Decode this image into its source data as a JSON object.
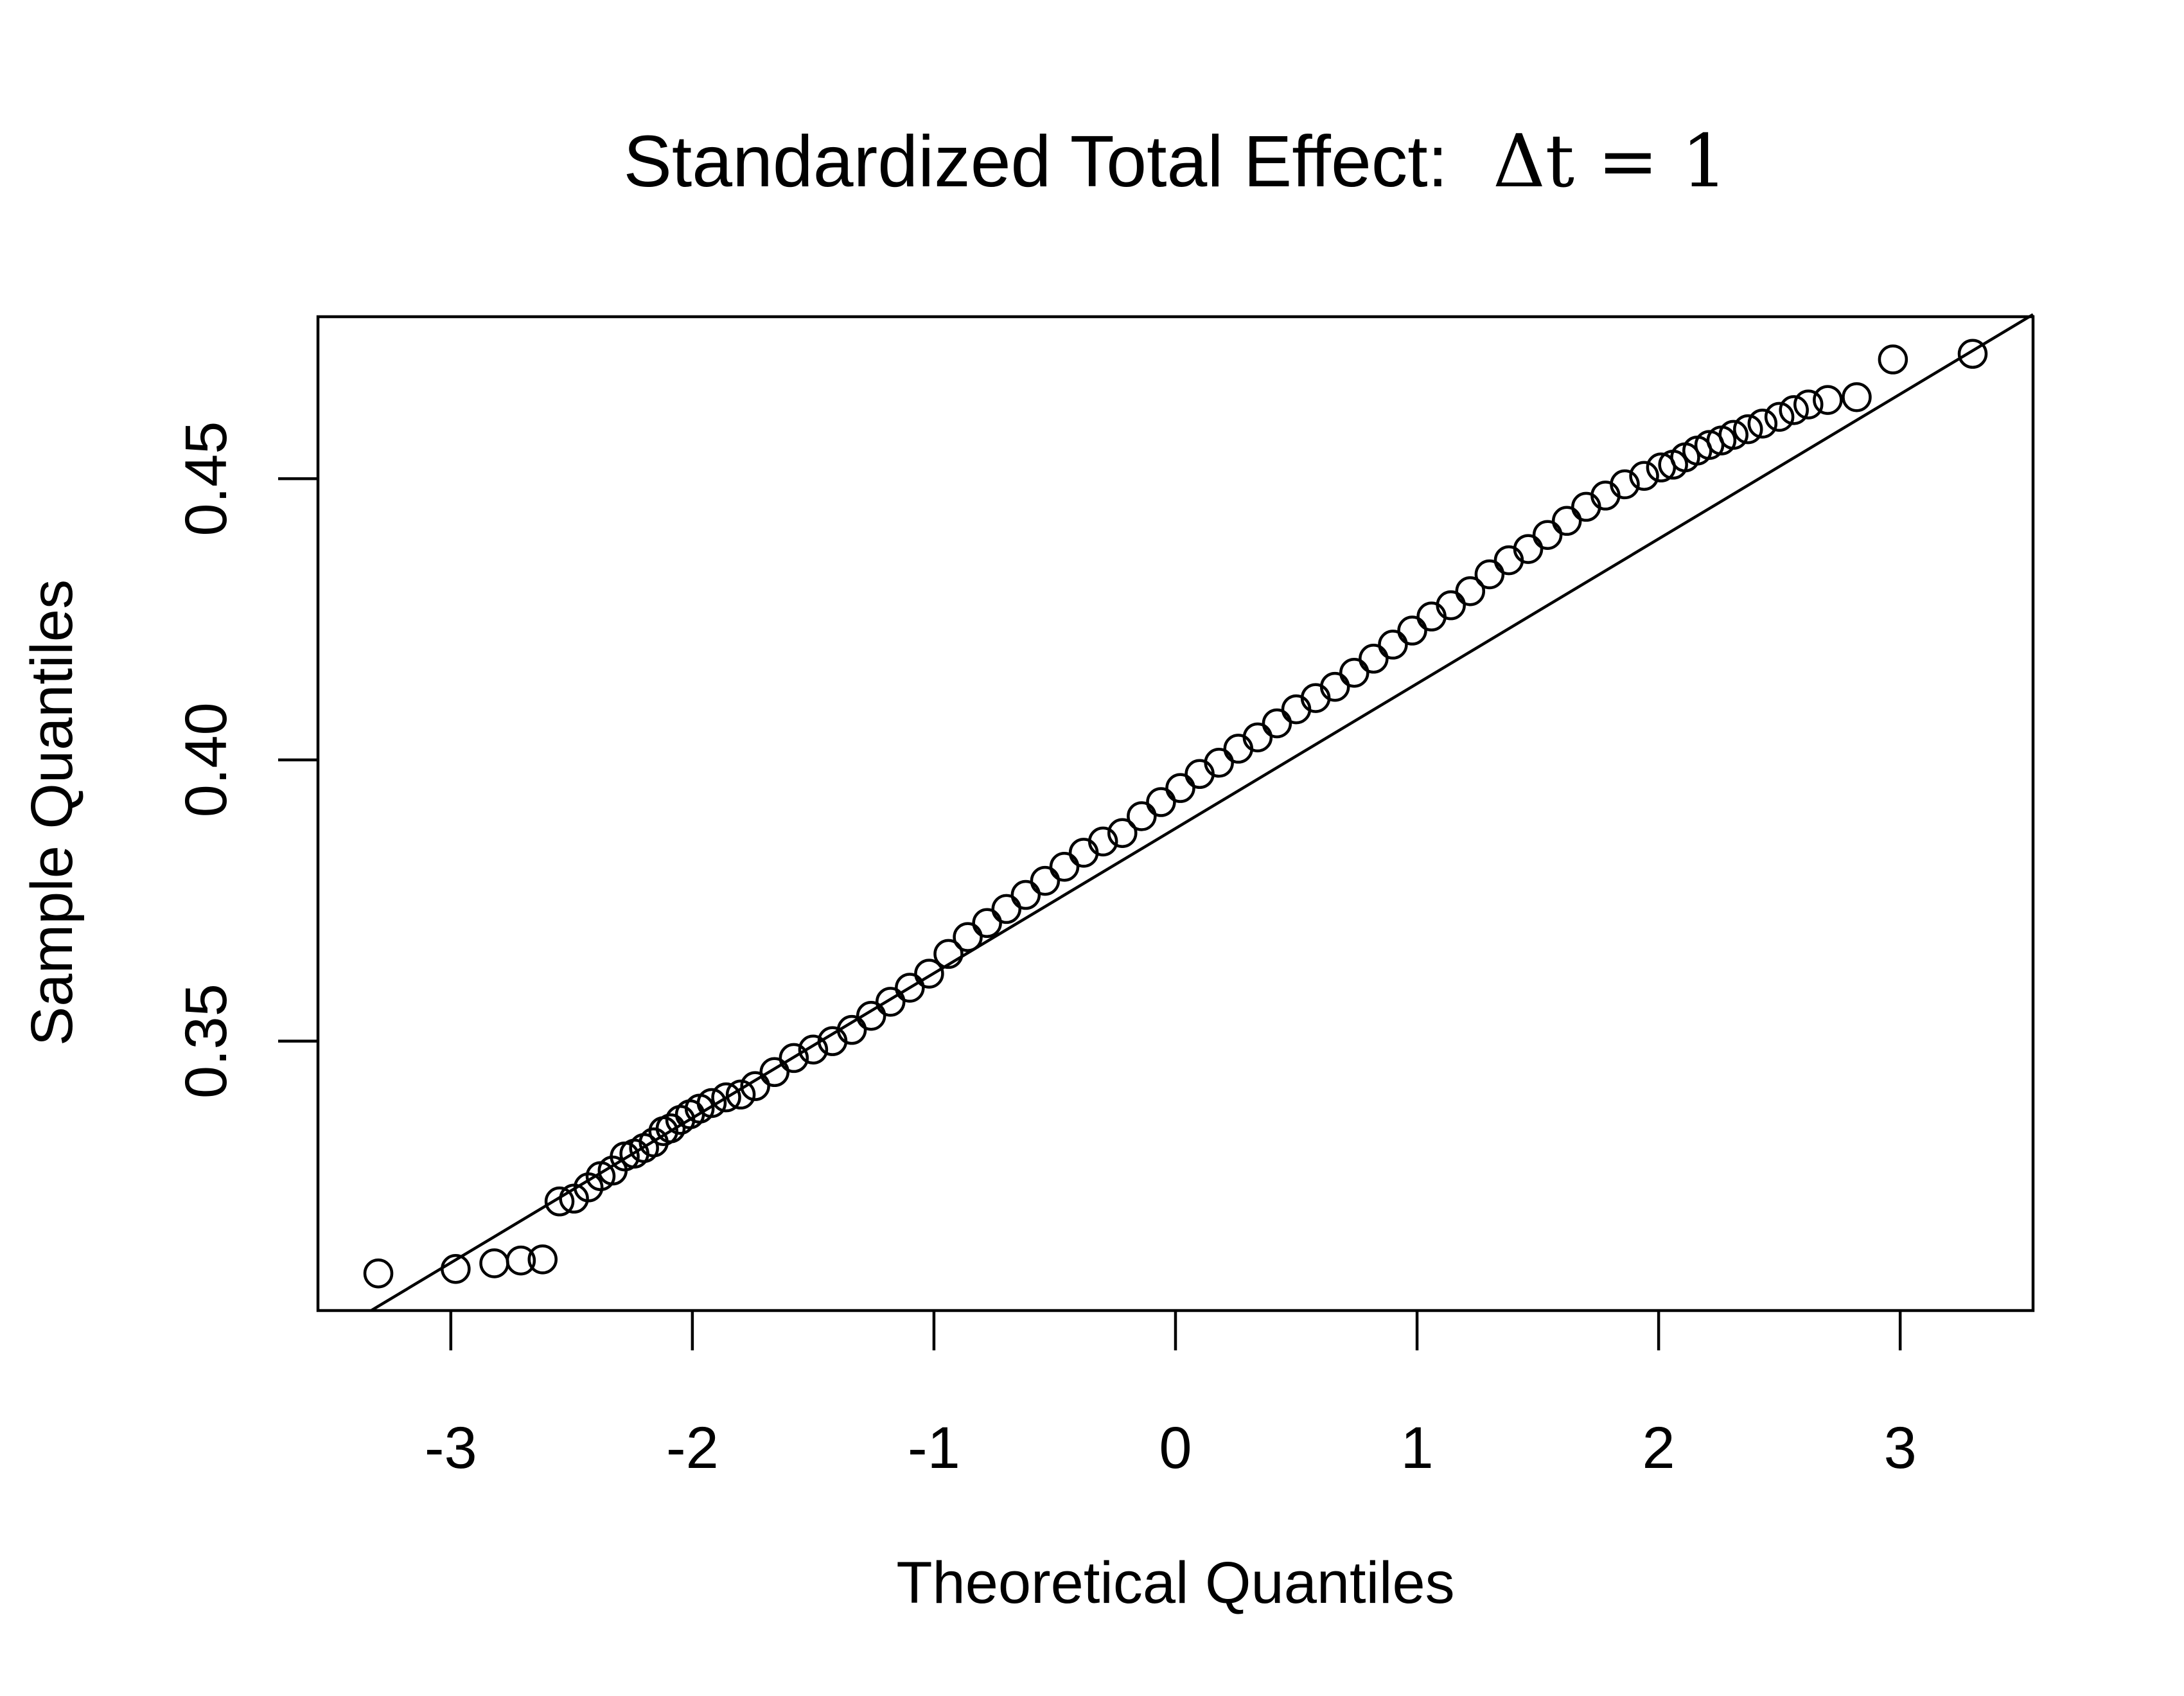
{
  "chart_data": {
    "type": "scatter",
    "title_main": "Standardized Total Effect:",
    "title_math": "Δt = 1",
    "xlabel": "Theoretical Quantiles",
    "ylabel": "Sample Quantiles",
    "xlim": [
      -3.55,
      3.55
    ],
    "ylim": [
      0.3021,
      0.4788
    ],
    "xticks": [
      -3,
      -2,
      -1,
      0,
      1,
      2,
      3
    ],
    "xtick_labels": [
      "-3",
      "-2",
      "-1",
      "0",
      "1",
      "2",
      "3"
    ],
    "yticks": [
      0.35,
      0.4,
      0.45
    ],
    "ytick_labels": [
      "0.35",
      "0.40",
      "0.45"
    ],
    "reference_line": {
      "x": [
        -3.33,
        3.55
      ],
      "y": [
        0.3021,
        0.4792
      ]
    },
    "points": {
      "x": [
        -3.3,
        -2.98,
        -2.82,
        -2.71,
        -2.62,
        -2.55,
        -2.49,
        -2.43,
        -2.38,
        -2.33,
        -2.28,
        -2.24,
        -2.2,
        -2.16,
        -2.12,
        -2.09,
        -2.05,
        -2.01,
        -1.97,
        -1.92,
        -1.86,
        -1.8,
        -1.74,
        -1.66,
        -1.58,
        -1.5,
        -1.42,
        -1.34,
        -1.26,
        -1.18,
        -1.1,
        -1.02,
        -0.94,
        -0.86,
        -0.78,
        -0.7,
        -0.62,
        -0.54,
        -0.46,
        -0.38,
        -0.3,
        -0.22,
        -0.14,
        -0.06,
        0.02,
        0.1,
        0.18,
        0.26,
        0.34,
        0.42,
        0.5,
        0.58,
        0.66,
        0.74,
        0.82,
        0.9,
        0.98,
        1.06,
        1.14,
        1.22,
        1.3,
        1.38,
        1.46,
        1.54,
        1.62,
        1.7,
        1.78,
        1.86,
        1.94,
        2.01,
        2.06,
        2.11,
        2.16,
        2.21,
        2.26,
        2.31,
        2.37,
        2.43,
        2.5,
        2.56,
        2.62,
        2.7,
        2.82,
        2.97,
        3.3
      ],
      "y": [
        0.3087,
        0.3095,
        0.3105,
        0.311,
        0.3112,
        0.3215,
        0.322,
        0.324,
        0.326,
        0.327,
        0.3295,
        0.33,
        0.331,
        0.332,
        0.334,
        0.3345,
        0.336,
        0.337,
        0.338,
        0.339,
        0.34,
        0.3405,
        0.342,
        0.3445,
        0.347,
        0.3485,
        0.35,
        0.352,
        0.3545,
        0.357,
        0.3595,
        0.362,
        0.3655,
        0.3685,
        0.371,
        0.3735,
        0.376,
        0.3785,
        0.381,
        0.3835,
        0.3855,
        0.387,
        0.39,
        0.3925,
        0.395,
        0.3975,
        0.3995,
        0.402,
        0.404,
        0.4065,
        0.409,
        0.411,
        0.413,
        0.4155,
        0.418,
        0.4205,
        0.423,
        0.4255,
        0.4275,
        0.43,
        0.433,
        0.4355,
        0.4375,
        0.44,
        0.4425,
        0.445,
        0.447,
        0.449,
        0.4505,
        0.452,
        0.4525,
        0.4538,
        0.455,
        0.456,
        0.4568,
        0.4578,
        0.4588,
        0.4598,
        0.461,
        0.4622,
        0.4632,
        0.464,
        0.4645,
        0.4712,
        0.4722
      ]
    }
  }
}
